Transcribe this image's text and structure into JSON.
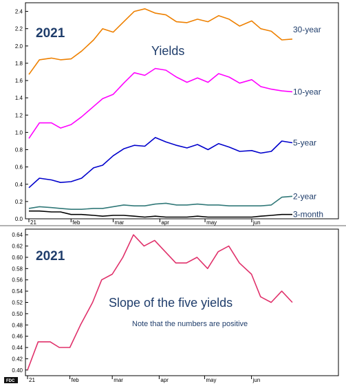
{
  "chart_data": [
    {
      "type": "line",
      "year_label": "2021",
      "title": "Yields",
      "xlabel": "",
      "ylabel": "",
      "x_tick_labels": [
        "21",
        "feb",
        "mar",
        "apr",
        "may",
        "jun"
      ],
      "yticks": [
        "0.0",
        "0.2",
        "0.4",
        "0.6",
        "0.8",
        "1.0",
        "1.2",
        "1.4",
        "1.6",
        "1.8",
        "2.0",
        "2.2",
        "2.4"
      ],
      "ylim": [
        0.0,
        2.5
      ],
      "grid": false,
      "x": [
        "2021-01-04",
        "2021-01-11",
        "2021-01-19",
        "2021-01-25",
        "2021-02-01",
        "2021-02-08",
        "2021-02-16",
        "2021-02-22",
        "2021-03-01",
        "2021-03-08",
        "2021-03-15",
        "2021-03-22",
        "2021-03-29",
        "2021-04-05",
        "2021-04-12",
        "2021-04-19",
        "2021-04-26",
        "2021-05-03",
        "2021-05-10",
        "2021-05-17",
        "2021-05-24",
        "2021-06-01",
        "2021-06-07",
        "2021-06-14",
        "2021-06-21",
        "2021-06-28"
      ],
      "series": [
        {
          "name": "30-year",
          "color": "#ee8000",
          "values": [
            1.67,
            1.84,
            1.86,
            1.84,
            1.85,
            1.94,
            2.07,
            2.2,
            2.16,
            2.28,
            2.4,
            2.43,
            2.38,
            2.36,
            2.28,
            2.27,
            2.31,
            2.28,
            2.35,
            2.31,
            2.23,
            2.29,
            2.2,
            2.17,
            2.07,
            2.08
          ]
        },
        {
          "name": "10-year",
          "color": "#ff00ff",
          "values": [
            0.93,
            1.11,
            1.11,
            1.05,
            1.09,
            1.18,
            1.3,
            1.39,
            1.44,
            1.57,
            1.69,
            1.66,
            1.74,
            1.72,
            1.64,
            1.58,
            1.63,
            1.58,
            1.68,
            1.64,
            1.57,
            1.61,
            1.53,
            1.5,
            1.48,
            1.47
          ]
        },
        {
          "name": "5-year",
          "color": "#0000cc",
          "values": [
            0.36,
            0.47,
            0.45,
            0.42,
            0.43,
            0.47,
            0.59,
            0.62,
            0.73,
            0.81,
            0.85,
            0.84,
            0.94,
            0.89,
            0.85,
            0.82,
            0.86,
            0.8,
            0.87,
            0.83,
            0.78,
            0.79,
            0.76,
            0.78,
            0.9,
            0.88
          ]
        },
        {
          "name": "2-year",
          "color": "#307878",
          "values": [
            0.12,
            0.14,
            0.13,
            0.12,
            0.11,
            0.11,
            0.12,
            0.12,
            0.14,
            0.16,
            0.15,
            0.15,
            0.17,
            0.18,
            0.16,
            0.16,
            0.17,
            0.16,
            0.16,
            0.15,
            0.15,
            0.15,
            0.15,
            0.16,
            0.25,
            0.26
          ]
        },
        {
          "name": "3-month",
          "color": "#000000",
          "values": [
            0.09,
            0.09,
            0.08,
            0.08,
            0.05,
            0.05,
            0.04,
            0.03,
            0.04,
            0.04,
            0.03,
            0.02,
            0.03,
            0.02,
            0.02,
            0.02,
            0.03,
            0.02,
            0.02,
            0.02,
            0.02,
            0.02,
            0.03,
            0.04,
            0.05,
            0.05
          ]
        }
      ]
    },
    {
      "type": "line",
      "year_label": "2021",
      "title": "Slope of the five yields",
      "subtitle": "Note that the numbers are positive",
      "xlabel": "",
      "ylabel": "",
      "x_tick_labels": [
        "21",
        "feb",
        "mar",
        "apr",
        "may",
        "jun"
      ],
      "yticks": [
        "0.40",
        "0.42",
        "0.44",
        "0.46",
        "0.48",
        "0.50",
        "0.52",
        "0.54",
        "0.56",
        "0.58",
        "0.60",
        "0.62",
        "0.64"
      ],
      "ylim": [
        0.39,
        0.65
      ],
      "grid": false,
      "x": [
        "2021-01-04",
        "2021-01-11",
        "2021-01-19",
        "2021-01-25",
        "2021-02-01",
        "2021-02-08",
        "2021-02-16",
        "2021-02-22",
        "2021-03-01",
        "2021-03-08",
        "2021-03-15",
        "2021-03-22",
        "2021-03-29",
        "2021-04-05",
        "2021-04-12",
        "2021-04-19",
        "2021-04-26",
        "2021-05-03",
        "2021-05-10",
        "2021-05-17",
        "2021-05-24",
        "2021-06-01",
        "2021-06-07",
        "2021-06-14",
        "2021-06-21",
        "2021-06-28"
      ],
      "series": [
        {
          "name": "",
          "color": "#e0306a",
          "values": [
            0.4,
            0.45,
            0.45,
            0.44,
            0.44,
            0.48,
            0.52,
            0.56,
            0.57,
            0.6,
            0.64,
            0.62,
            0.63,
            0.61,
            0.59,
            0.59,
            0.6,
            0.58,
            0.61,
            0.62,
            0.59,
            0.57,
            0.53,
            0.52,
            0.54,
            0.52
          ]
        }
      ]
    }
  ],
  "logo_text": "FDC"
}
